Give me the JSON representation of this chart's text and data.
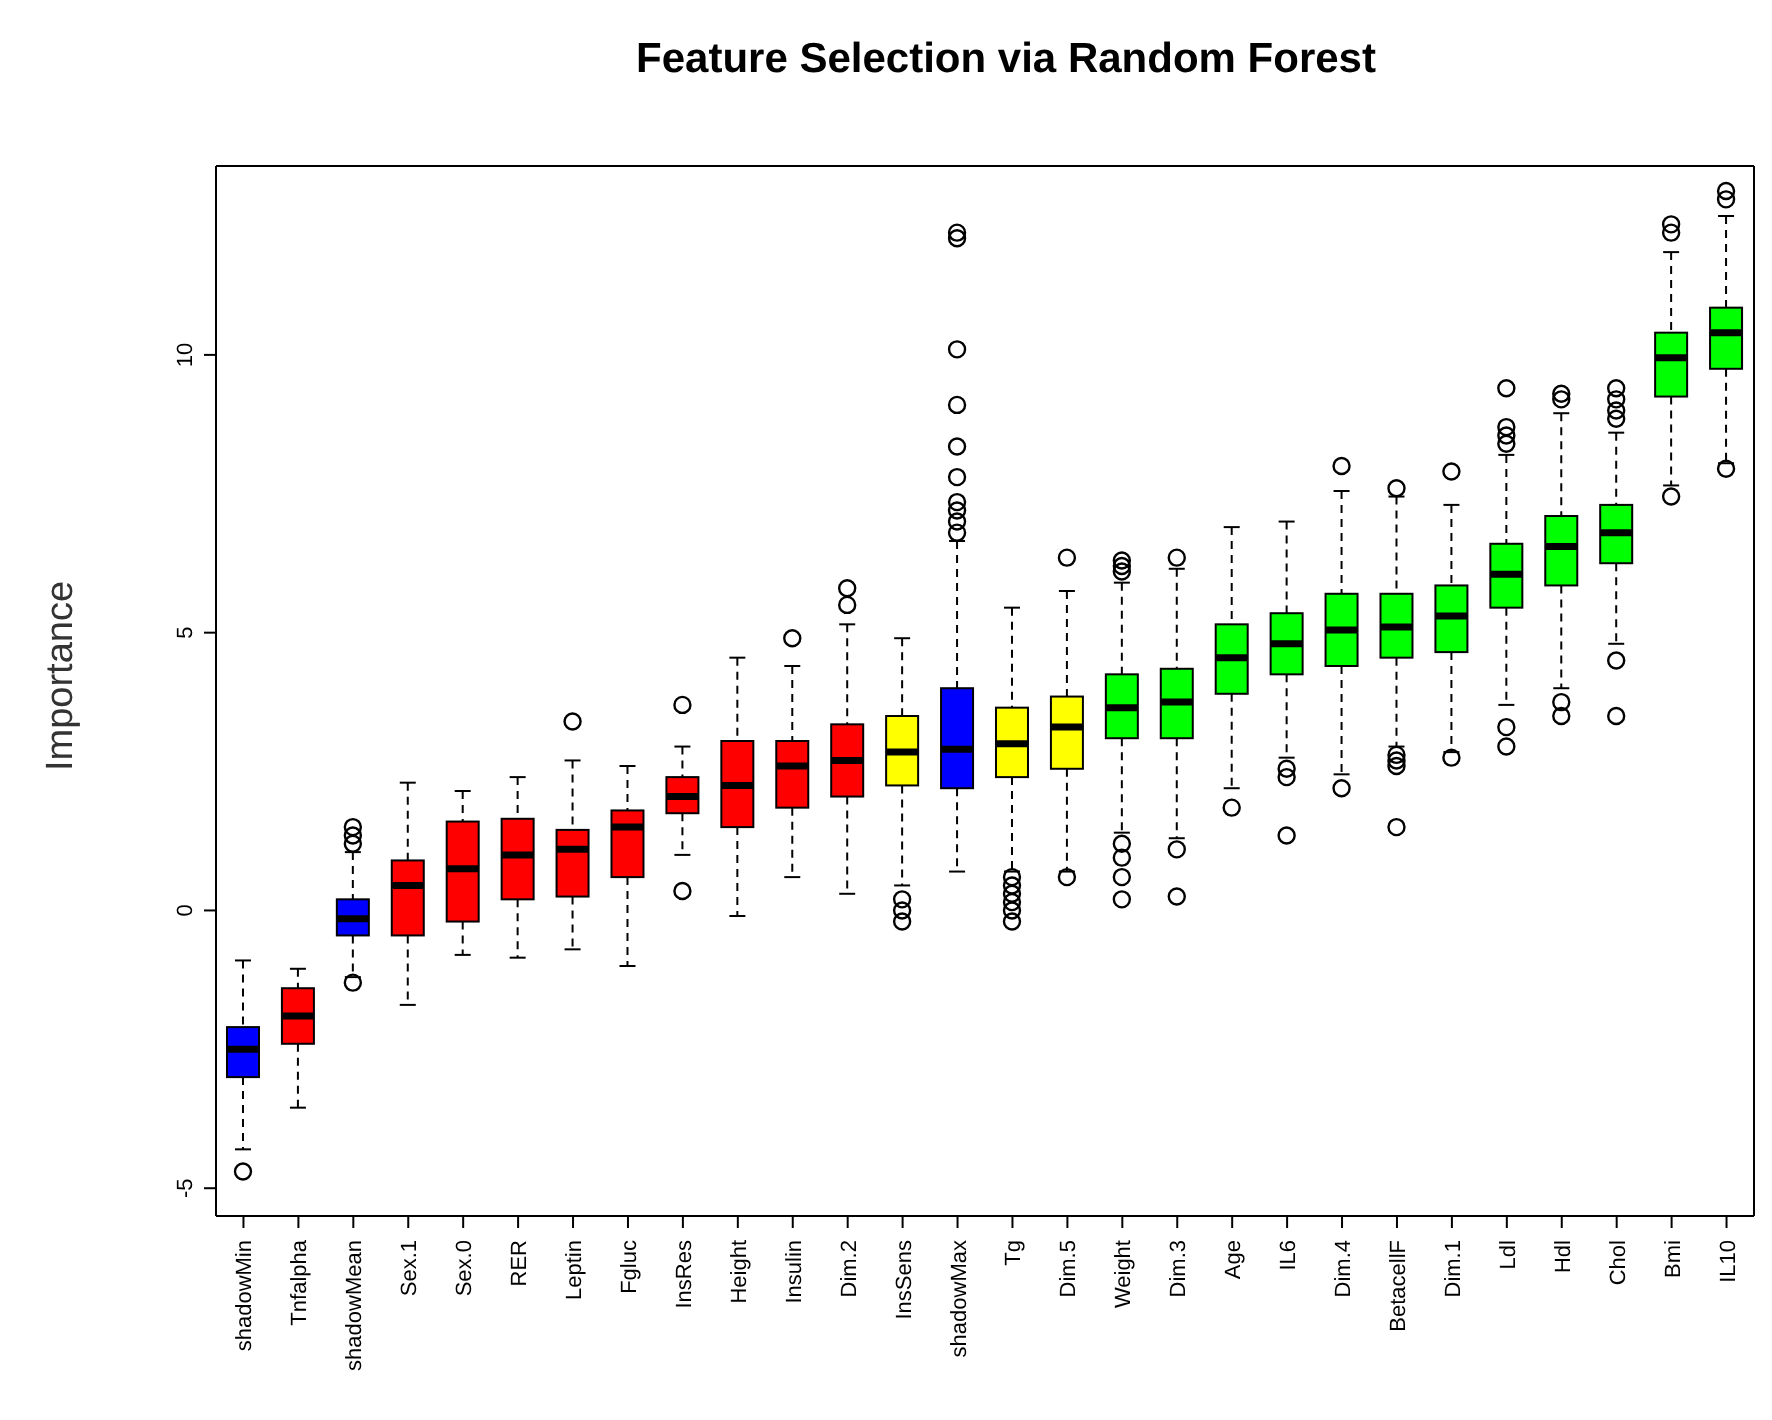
{
  "chart_data": {
    "type": "box",
    "title": "Feature Selection via Random Forest",
    "ylabel": "Importance",
    "categories": [
      "shadowMin",
      "Tnfalpha",
      "shadowMean",
      "Sex.1",
      "Sex.0",
      "RER",
      "Leptin",
      "Fgluc",
      "InsRes",
      "Height",
      "Insulin",
      "Dim.2",
      "InsSens",
      "shadowMax",
      "Tg",
      "Dim.5",
      "Weight",
      "Dim.3",
      "Age",
      "IL6",
      "Dim.4",
      "BetacellF",
      "Dim.1",
      "Ldl",
      "Hdl",
      "Chol",
      "Bmi",
      "IL10"
    ],
    "colors": [
      "#0000ff",
      "#ff0000",
      "#0000ff",
      "#ff0000",
      "#ff0000",
      "#ff0000",
      "#ff0000",
      "#ff0000",
      "#ff0000",
      "#ff0000",
      "#ff0000",
      "#ff0000",
      "#ffff00",
      "#0000ff",
      "#ffff00",
      "#ffff00",
      "#00ff00",
      "#00ff00",
      "#00ff00",
      "#00ff00",
      "#00ff00",
      "#00ff00",
      "#00ff00",
      "#00ff00",
      "#00ff00",
      "#00ff00",
      "#00ff00",
      "#00ff00"
    ],
    "boxes": [
      {
        "low": -4.3,
        "q1": -3.0,
        "median": -2.5,
        "q3": -2.1,
        "high": -0.9,
        "outliers": [
          -4.7
        ]
      },
      {
        "low": -3.55,
        "q1": -2.4,
        "median": -1.9,
        "q3": -1.4,
        "high": -1.05
      },
      {
        "low": -1.2,
        "q1": -0.45,
        "median": -0.15,
        "q3": 0.2,
        "high": 1.05,
        "outliers": [
          1.2,
          1.35,
          1.5,
          -1.3
        ]
      },
      {
        "low": -1.7,
        "q1": -0.45,
        "median": 0.45,
        "q3": 0.9,
        "high": 2.3
      },
      {
        "low": -0.8,
        "q1": -0.2,
        "median": 0.75,
        "q3": 1.6,
        "high": 2.15
      },
      {
        "low": -0.85,
        "q1": 0.2,
        "median": 1.0,
        "q3": 1.65,
        "high": 2.4
      },
      {
        "low": -0.7,
        "q1": 0.25,
        "median": 1.1,
        "q3": 1.45,
        "high": 2.7,
        "outliers": [
          3.4
        ]
      },
      {
        "low": -1.0,
        "q1": 0.6,
        "median": 1.5,
        "q3": 1.8,
        "high": 2.6
      },
      {
        "low": 1.0,
        "q1": 1.75,
        "median": 2.05,
        "q3": 2.4,
        "high": 2.95,
        "outliers": [
          3.7,
          0.35
        ]
      },
      {
        "low": -0.1,
        "q1": 1.5,
        "median": 2.25,
        "q3": 3.05,
        "high": 4.55
      },
      {
        "low": 0.6,
        "q1": 1.85,
        "median": 2.6,
        "q3": 3.05,
        "high": 4.4,
        "outliers": [
          4.9
        ]
      },
      {
        "low": 0.3,
        "q1": 2.05,
        "median": 2.7,
        "q3": 3.35,
        "high": 5.15,
        "outliers": [
          5.5,
          5.8
        ]
      },
      {
        "low": 0.45,
        "q1": 2.25,
        "median": 2.85,
        "q3": 3.5,
        "high": 4.9,
        "outliers": [
          0.2,
          0.0,
          -0.2
        ]
      },
      {
        "low": 0.7,
        "q1": 2.2,
        "median": 2.9,
        "q3": 4.0,
        "high": 6.65,
        "outliers": [
          6.8,
          7.0,
          7.2,
          7.35,
          7.8,
          8.35,
          9.1,
          10.1,
          12.1,
          12.2
        ]
      },
      {
        "low": 0.7,
        "q1": 2.4,
        "median": 3.0,
        "q3": 3.65,
        "high": 5.45,
        "outliers": [
          0.6,
          0.45,
          0.3,
          0.15,
          0.0,
          -0.2
        ]
      },
      {
        "low": 0.7,
        "q1": 2.55,
        "median": 3.3,
        "q3": 3.85,
        "high": 5.75,
        "outliers": [
          6.35,
          0.6
        ]
      },
      {
        "low": 1.4,
        "q1": 3.1,
        "median": 3.65,
        "q3": 4.25,
        "high": 5.9,
        "outliers": [
          6.1,
          6.2,
          6.3,
          1.2,
          0.95,
          0.6,
          0.2
        ]
      },
      {
        "low": 1.3,
        "q1": 3.1,
        "median": 3.75,
        "q3": 4.35,
        "high": 6.15,
        "outliers": [
          6.35,
          1.1,
          0.25
        ]
      },
      {
        "low": 2.2,
        "q1": 3.9,
        "median": 4.55,
        "q3": 5.15,
        "high": 6.9,
        "outliers": [
          1.85
        ]
      },
      {
        "low": 2.75,
        "q1": 4.25,
        "median": 4.8,
        "q3": 5.35,
        "high": 7.0,
        "outliers": [
          2.55,
          2.4,
          1.35
        ]
      },
      {
        "low": 2.45,
        "q1": 4.4,
        "median": 5.05,
        "q3": 5.7,
        "high": 7.55,
        "outliers": [
          8.0,
          2.2
        ]
      },
      {
        "low": 2.95,
        "q1": 4.55,
        "median": 5.1,
        "q3": 5.7,
        "high": 7.45,
        "outliers": [
          7.6,
          2.8,
          2.7,
          2.6,
          1.5
        ]
      },
      {
        "low": 2.85,
        "q1": 4.65,
        "median": 5.3,
        "q3": 5.85,
        "high": 7.3,
        "outliers": [
          7.9,
          2.75
        ]
      },
      {
        "low": 3.7,
        "q1": 5.45,
        "median": 6.05,
        "q3": 6.6,
        "high": 8.2,
        "outliers": [
          8.4,
          8.55,
          8.7,
          9.4,
          3.3,
          2.95
        ]
      },
      {
        "low": 4.0,
        "q1": 5.85,
        "median": 6.55,
        "q3": 7.1,
        "high": 8.95,
        "outliers": [
          9.2,
          9.3,
          3.75,
          3.5
        ]
      },
      {
        "low": 4.8,
        "q1": 6.25,
        "median": 6.8,
        "q3": 7.3,
        "high": 8.6,
        "outliers": [
          8.85,
          9.0,
          9.2,
          9.4,
          4.5,
          3.5
        ]
      },
      {
        "low": 7.65,
        "q1": 9.25,
        "median": 9.95,
        "q3": 10.4,
        "high": 11.85,
        "outliers": [
          12.2,
          12.35,
          7.45
        ]
      },
      {
        "low": 8.05,
        "q1": 9.75,
        "median": 10.4,
        "q3": 10.85,
        "high": 12.5,
        "outliers": [
          12.8,
          12.95,
          7.95
        ]
      }
    ],
    "ylim": [
      -5.5,
      13.4
    ],
    "yticks": [
      -5,
      0,
      5,
      10
    ]
  }
}
